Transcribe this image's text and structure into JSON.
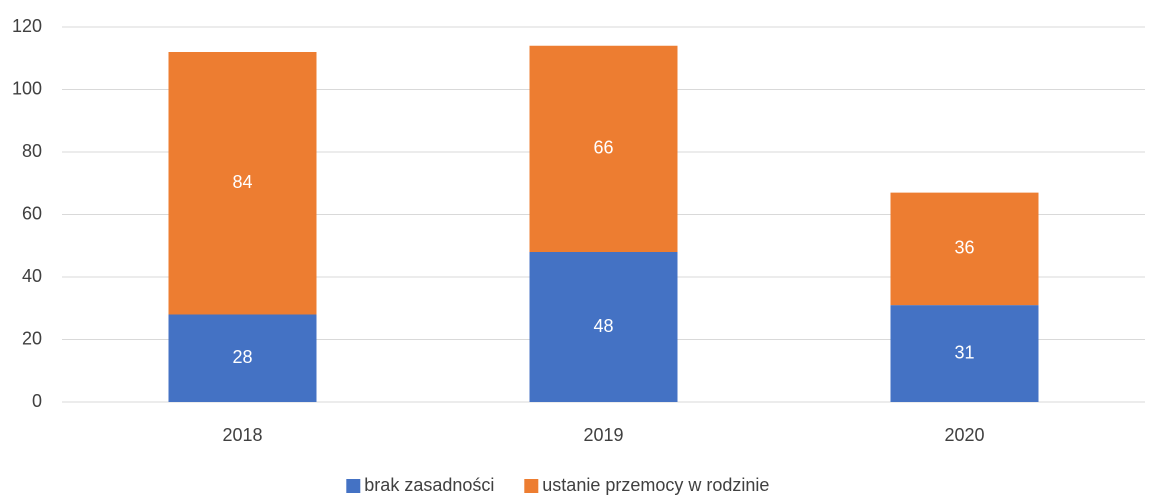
{
  "chart_data": {
    "type": "stacked_bar",
    "categories": [
      "2018",
      "2019",
      "2020"
    ],
    "series": [
      {
        "name": "brak zasadności",
        "color": "#4472c4",
        "values": [
          28,
          48,
          31
        ]
      },
      {
        "name": "ustanie przemocy w rodzinie",
        "color": "#ed7d31",
        "values": [
          84,
          66,
          36
        ]
      }
    ],
    "ylim": [
      0,
      120
    ],
    "yticks": [
      0,
      20,
      40,
      60,
      80,
      100,
      120
    ],
    "grid": true,
    "legend": "bottom"
  }
}
